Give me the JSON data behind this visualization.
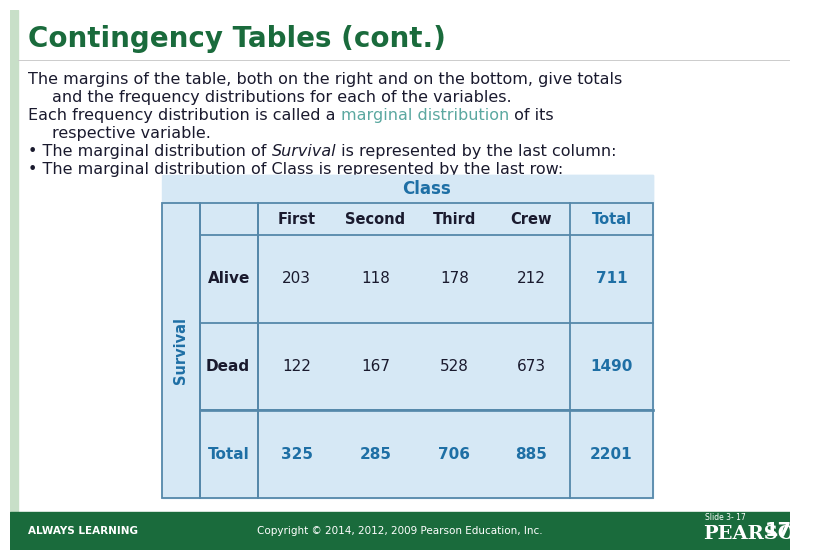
{
  "title": "Contingency Tables (cont.)",
  "title_color": "#1a6b3c",
  "title_fontsize": 20,
  "bg_color": "#ffffff",
  "left_bar_color": "#c8dfc8",
  "highlight_color": "#5ba8a0",
  "normal_text_color": "#1a1a2e",
  "text_fontsize": 11.5,
  "table_bg": "#d6e8f5",
  "table_header_bg": "#1e6fa5",
  "table_header_text": "#ffffff",
  "table_total_color": "#1e6fa5",
  "table_border_color": "#5588aa",
  "col_headers": [
    "First",
    "Second",
    "Third",
    "Crew",
    "Total"
  ],
  "row_headers": [
    "Alive",
    "Dead",
    "Total"
  ],
  "data": [
    [
      203,
      118,
      178,
      212,
      711
    ],
    [
      122,
      167,
      528,
      673,
      1490
    ],
    [
      325,
      285,
      706,
      885,
      2201
    ]
  ],
  "class_label": "Class",
  "survival_label": "Survival",
  "footer_bg": "#1a6b3c",
  "footer_text_color": "#ffffff",
  "footer_left": "ALWAYS LEARNING",
  "footer_center": "Copyright © 2014, 2012, 2009 Pearson Education, Inc.",
  "footer_pearson": "PEARSON",
  "footer_number": "17",
  "footer_slide": "Slide 3- 17"
}
